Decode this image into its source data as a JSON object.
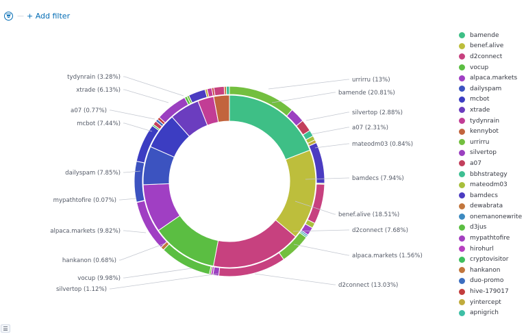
{
  "filter_bar": {
    "add_filter_label": "+ Add filter",
    "filter_icon": "filter-icon"
  },
  "chart_data": {
    "type": "pie",
    "donut": true,
    "inner_ring": [
      {
        "name": "bamende",
        "percent": 20.81,
        "color": "#3ebf86"
      },
      {
        "name": "benef.alive",
        "percent": 18.51,
        "color": "#bdbe3c"
      },
      {
        "name": "d2connect",
        "percent": 18.4,
        "color": "#c7417f"
      },
      {
        "name": "vocup",
        "percent": 13.5,
        "color": "#5bbe42"
      },
      {
        "name": "alpaca.markets",
        "percent": 9.82,
        "color": "#a03fc3"
      },
      {
        "name": "dailyspam",
        "percent": 7.85,
        "color": "#3c53c0"
      },
      {
        "name": "mcbot",
        "percent": 7.44,
        "color": "#3c3dc2"
      },
      {
        "name": "xtrade",
        "percent": 6.13,
        "color": "#6b3dbf"
      },
      {
        "name": "tydynrain",
        "percent": 3.28,
        "color": "#c23d95"
      },
      {
        "name": "kennybot",
        "percent": 3.2,
        "color": "#c2643d"
      }
    ],
    "outer_ring": [
      {
        "name": "urrirru",
        "percent": 13,
        "color": "#73bf3f"
      },
      {
        "name": "silvertop",
        "percent": 2.88,
        "color": "#9b40c0"
      },
      {
        "name": "a07",
        "percent": 2.31,
        "color": "#c23f5c"
      },
      {
        "name": "bbhstrategy",
        "percent": 1.2,
        "color": "#3ebf93"
      },
      {
        "name": "mateodm03",
        "percent": 0.84,
        "color": "#a8bf3c"
      },
      {
        "name": "yintercept",
        "percent": 0.6,
        "color": "#c0ab3c"
      },
      {
        "name": "bamdecs",
        "percent": 7.94,
        "color": "#4b3cc1"
      },
      {
        "name": "benef.alive",
        "percent": 0.2,
        "color": "#bdbe3c"
      },
      {
        "name": "d2connect",
        "percent": 7.68,
        "color": "#c7417f"
      },
      {
        "name": "mateodm03",
        "percent": 1.0,
        "color": "#a8bf3c"
      },
      {
        "name": "alpaca.markets",
        "percent": 1.56,
        "color": "#a03fc3"
      },
      {
        "name": "onemanonewrite",
        "percent": 0.3,
        "color": "#3c8ac0"
      },
      {
        "name": "bbhstrategy",
        "percent": 0.3,
        "color": "#3ebf93"
      },
      {
        "name": "urrirru",
        "percent": 6.0,
        "color": "#73bf3f"
      },
      {
        "name": "d2connect",
        "percent": 13.03,
        "color": "#c7417f"
      },
      {
        "name": "silvertop",
        "percent": 1.12,
        "color": "#9b40c0"
      },
      {
        "name": "hirohurl",
        "percent": 0.4,
        "color": "#b740c0"
      },
      {
        "name": "urrirru",
        "percent": 0.3,
        "color": "#73bf3f"
      },
      {
        "name": "vocup",
        "percent": 9.98,
        "color": "#5bbe42"
      },
      {
        "name": "hankanon",
        "percent": 0.68,
        "color": "#c2763d"
      },
      {
        "name": "alpaca.markets",
        "percent": 9.82,
        "color": "#a03fc3"
      },
      {
        "name": "mypathtofire",
        "percent": 0.07,
        "color": "#a33fc0"
      },
      {
        "name": "dailyspam",
        "percent": 7.85,
        "color": "#3c53c0"
      },
      {
        "name": "mcbot",
        "percent": 7.44,
        "color": "#3c3dc2"
      },
      {
        "name": "cryptovisitor",
        "percent": 0.3,
        "color": "#3ebf5e"
      },
      {
        "name": "a07",
        "percent": 0.77,
        "color": "#c23f5c"
      },
      {
        "name": "duo-promo",
        "percent": 0.5,
        "color": "#3c6ec0"
      },
      {
        "name": "hive-179017",
        "percent": 0.5,
        "color": "#c23d3d"
      },
      {
        "name": "xtrade",
        "percent": 6.13,
        "color": "#9b40c0"
      },
      {
        "name": "d3jus",
        "percent": 0.5,
        "color": "#5bbe42"
      },
      {
        "name": "urrirru",
        "percent": 0.4,
        "color": "#73bf3f"
      },
      {
        "name": "tydynrain",
        "percent": 3.28,
        "color": "#4b3cc1"
      },
      {
        "name": "yintercept",
        "percent": 0.4,
        "color": "#c0ab3c"
      },
      {
        "name": "tydynrain",
        "percent": 0.9,
        "color": "#c23d95"
      },
      {
        "name": "hive-179017",
        "percent": 0.4,
        "color": "#c23d3d"
      },
      {
        "name": "d2connect",
        "percent": 2.0,
        "color": "#c7417f"
      },
      {
        "name": "hankanon",
        "percent": 0.4,
        "color": "#c2763d"
      },
      {
        "name": "bbhstrategy",
        "percent": 0.6,
        "color": "#3ebf93"
      }
    ],
    "annotations": [
      {
        "text": "urrirru (13%)",
        "side": "right"
      },
      {
        "text": "bamende (20.81%)",
        "side": "right"
      },
      {
        "text": "silvertop (2.88%)",
        "side": "right"
      },
      {
        "text": "a07 (2.31%)",
        "side": "right"
      },
      {
        "text": "mateodm03 (0.84%)",
        "side": "right"
      },
      {
        "text": "bamdecs (7.94%)",
        "side": "right"
      },
      {
        "text": "benef.alive (18.51%)",
        "side": "right"
      },
      {
        "text": "d2connect (7.68%)",
        "side": "right"
      },
      {
        "text": "alpaca.markets (1.56%)",
        "side": "right"
      },
      {
        "text": "d2connect (13.03%)",
        "side": "right"
      },
      {
        "text": "tydynrain (3.28%)",
        "side": "left"
      },
      {
        "text": "xtrade (6.13%)",
        "side": "left"
      },
      {
        "text": "a07 (0.77%)",
        "side": "left"
      },
      {
        "text": "mcbot (7.44%)",
        "side": "left"
      },
      {
        "text": "dailyspam (7.85%)",
        "side": "left"
      },
      {
        "text": "mypathtofire (0.07%)",
        "side": "left"
      },
      {
        "text": "alpaca.markets (9.82%)",
        "side": "left"
      },
      {
        "text": "hankanon (0.68%)",
        "side": "left"
      },
      {
        "text": "vocup (9.98%)",
        "side": "left"
      },
      {
        "text": "silvertop (1.12%)",
        "side": "left"
      }
    ],
    "legend": [
      {
        "label": "bamende",
        "color": "#3ebf86"
      },
      {
        "label": "benef.alive",
        "color": "#bdbe3c"
      },
      {
        "label": "d2connect",
        "color": "#c7417f"
      },
      {
        "label": "vocup",
        "color": "#5bbe42"
      },
      {
        "label": "alpaca.markets",
        "color": "#a03fc3"
      },
      {
        "label": "dailyspam",
        "color": "#3c53c0"
      },
      {
        "label": "mcbot",
        "color": "#3c3dc2"
      },
      {
        "label": "xtrade",
        "color": "#6b3dbf"
      },
      {
        "label": "tydynrain",
        "color": "#c23d95"
      },
      {
        "label": "kennybot",
        "color": "#c2643d"
      },
      {
        "label": "urrirru",
        "color": "#73bf3f"
      },
      {
        "label": "silvertop",
        "color": "#9b40c0"
      },
      {
        "label": "a07",
        "color": "#c23f5c"
      },
      {
        "label": "bbhstrategy",
        "color": "#3ebf93"
      },
      {
        "label": "mateodm03",
        "color": "#a8bf3c"
      },
      {
        "label": "bamdecs",
        "color": "#4b3cc1"
      },
      {
        "label": "dewabrata",
        "color": "#c2763d"
      },
      {
        "label": "onemanonewrite",
        "color": "#3c8ac0"
      },
      {
        "label": "d3jus",
        "color": "#5bbe42"
      },
      {
        "label": "mypathtofire",
        "color": "#a33fc0"
      },
      {
        "label": "hirohurl",
        "color": "#b740c0"
      },
      {
        "label": "cryptovisitor",
        "color": "#3ebf5e"
      },
      {
        "label": "hankanon",
        "color": "#c2763d"
      },
      {
        "label": "duo-promo",
        "color": "#3c6ec0"
      },
      {
        "label": "hive-179017",
        "color": "#c23d3d"
      },
      {
        "label": "yintercept",
        "color": "#c0ab3c"
      },
      {
        "label": "apnigrich",
        "color": "#3ebfa6"
      }
    ],
    "legend_position": "right"
  }
}
